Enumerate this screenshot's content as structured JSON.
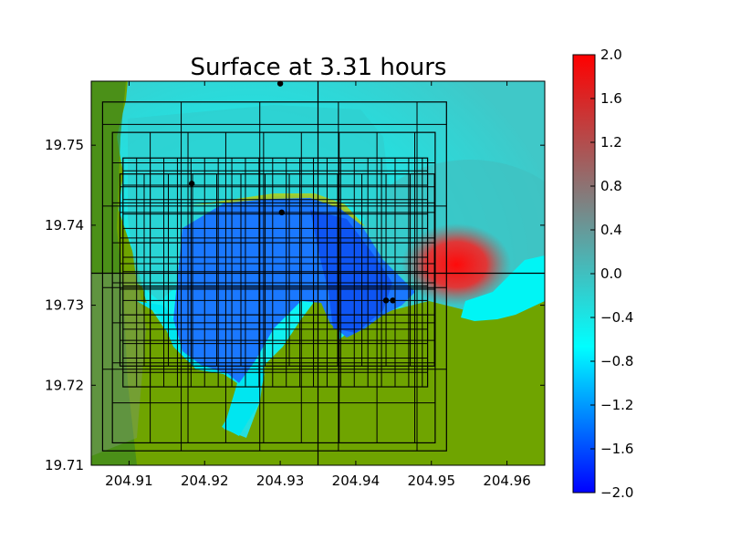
{
  "chart_data": {
    "type": "heatmap",
    "title": "Surface at 3.31 hours",
    "xlabel": "",
    "ylabel": "",
    "xlim": [
      204.905,
      204.965
    ],
    "ylim": [
      19.71,
      19.758
    ],
    "x_ticks": [
      204.91,
      204.92,
      204.93,
      204.94,
      204.95,
      204.96
    ],
    "x_tick_labels": [
      "204.91",
      "204.92",
      "204.93",
      "204.94",
      "204.95",
      "204.96"
    ],
    "y_ticks": [
      19.71,
      19.72,
      19.73,
      19.74,
      19.75
    ],
    "y_tick_labels": [
      "19.71",
      "19.72",
      "19.73",
      "19.74",
      "19.75"
    ],
    "colorbar": {
      "min": -2.0,
      "max": 2.0,
      "ticks": [
        2.0,
        1.6,
        1.2,
        0.8,
        0.4,
        0.0,
        -0.4,
        -0.8,
        -1.2,
        -1.6,
        -2.0
      ],
      "tick_labels": [
        "2.0",
        "1.6",
        "1.2",
        "0.8",
        "0.4",
        "0.0",
        "−0.4",
        "−0.8",
        "−1.2",
        "−1.6",
        "−2.0"
      ],
      "colors": [
        "#0000ff",
        "#00ffff",
        "#808080",
        "#ff0000"
      ]
    },
    "colors": {
      "land": "#6fa400",
      "land_dark": "#3f8a20",
      "water_shallow": "#00f5f5",
      "water_mid": "#3ad0d0",
      "depression": "#1a78ff",
      "depression_deep": "#0b4cf0",
      "surge": "#ff1010",
      "grid_lines": "#000000"
    },
    "gauges": [
      {
        "x": 204.93,
        "y": 19.7577
      },
      {
        "x": 204.9183,
        "y": 19.7452
      },
      {
        "x": 204.9302,
        "y": 19.7416
      },
      {
        "x": 204.944,
        "y": 19.7306
      },
      {
        "x": 204.9449,
        "y": 19.7306
      }
    ],
    "crosshair": {
      "x": 204.935,
      "y": 19.734
    },
    "amr_patches": [
      {
        "x0": 204.9065,
        "x1": 204.952,
        "y0": 19.7118,
        "y1": 19.7554,
        "dx": 0.0104,
        "dy": 0.0102
      },
      {
        "x0": 204.9078,
        "x1": 204.9505,
        "y0": 19.7128,
        "y1": 19.7516,
        "dx": 0.005,
        "dy": 0.005
      },
      {
        "x0": 204.9088,
        "x1": 204.9505,
        "y0": 19.7224,
        "y1": 19.7464,
        "dx": 0.0032,
        "dy": 0.0032
      },
      {
        "x0": 204.9092,
        "x1": 204.9495,
        "y0": 19.7198,
        "y1": 19.7484,
        "dx": 0.0018,
        "dy": 0.0018
      }
    ]
  }
}
